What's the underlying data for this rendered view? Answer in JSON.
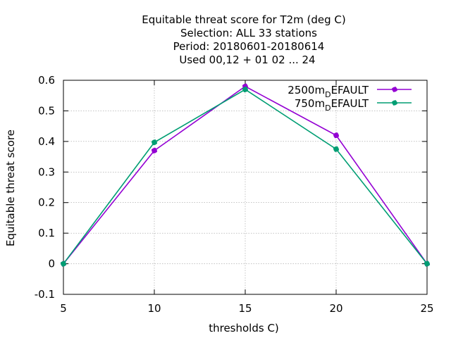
{
  "chart_data": {
    "type": "line",
    "title_lines": [
      "Equitable threat score  for T2m (deg C)",
      "Selection: ALL     33 stations",
      "Period: 20180601-20180614",
      "Used  00,12  + 01 02 ... 24"
    ],
    "xlabel": "thresholds C)",
    "ylabel": "Equitable threat score",
    "xlim": [
      5,
      25
    ],
    "ylim": [
      -0.1,
      0.6
    ],
    "x_ticks": [
      "5",
      "10",
      "15",
      "20",
      "25"
    ],
    "y_ticks": [
      "-0.1",
      "0",
      "0.1",
      "0.2",
      "0.3",
      "0.4",
      "0.5",
      "0.6"
    ],
    "grid": true,
    "legend_position": "top-right",
    "x": [
      5,
      10,
      15,
      20,
      25
    ],
    "series": [
      {
        "name_main": "2500m",
        "name_sub": "D",
        "name_rest": "EFAULT",
        "color": "#9400d3",
        "values": [
          0.0,
          0.37,
          0.58,
          0.42,
          0.0
        ]
      },
      {
        "name_main": "750m",
        "name_sub": "D",
        "name_rest": "EFAULT",
        "color": "#009e73",
        "values": [
          0.0,
          0.397,
          0.57,
          0.375,
          0.0
        ]
      }
    ]
  }
}
